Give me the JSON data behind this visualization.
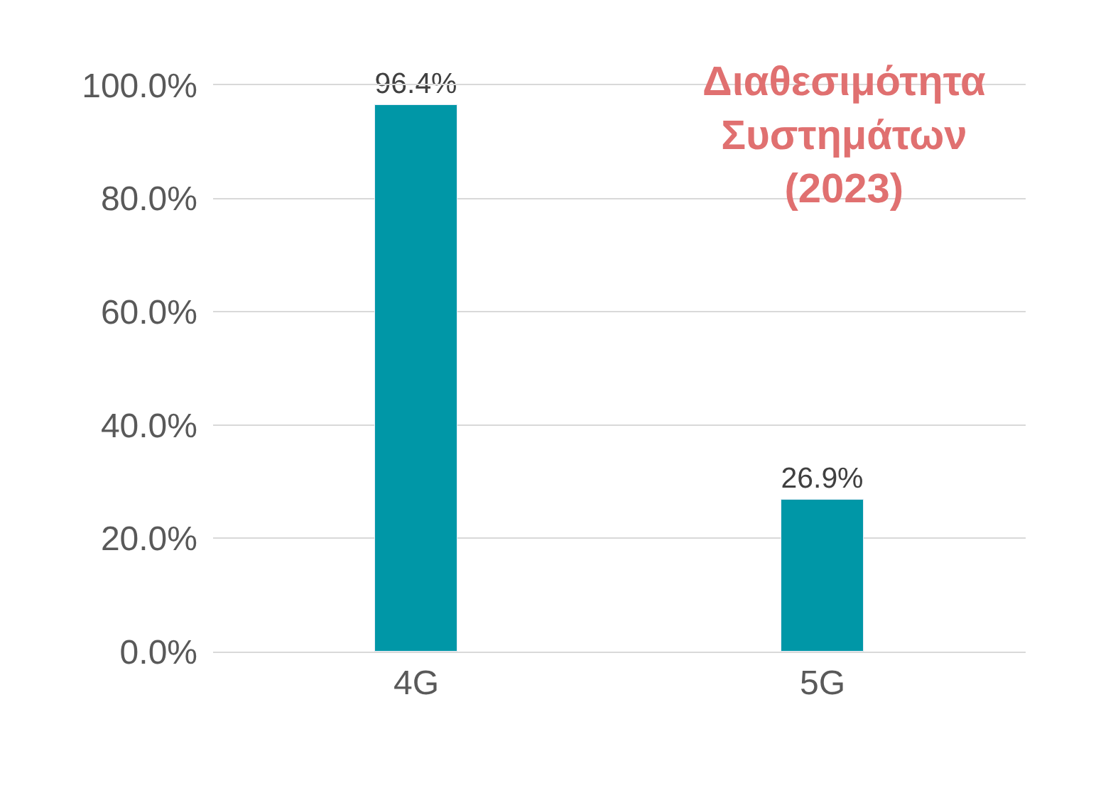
{
  "chart_data": {
    "type": "bar",
    "title": "Διαθεσιμότητα\nΣυστημάτων\n(2023)",
    "categories": [
      "4G",
      "5G"
    ],
    "series": [
      {
        "color": "#0097a7",
        "values": [
          96.4,
          26.9
        ],
        "value_labels": [
          "96.4%",
          "26.9%"
        ]
      }
    ],
    "ylim": [
      0,
      100
    ],
    "yticks": [
      {
        "value": 0,
        "label": "0.0%"
      },
      {
        "value": 20,
        "label": "20.0%"
      },
      {
        "value": 40,
        "label": "40.0%"
      },
      {
        "value": 60,
        "label": "60.0%"
      },
      {
        "value": 80,
        "label": "80.0%"
      },
      {
        "value": 100,
        "label": "100.0%"
      }
    ],
    "grid": "y",
    "legend": false
  }
}
